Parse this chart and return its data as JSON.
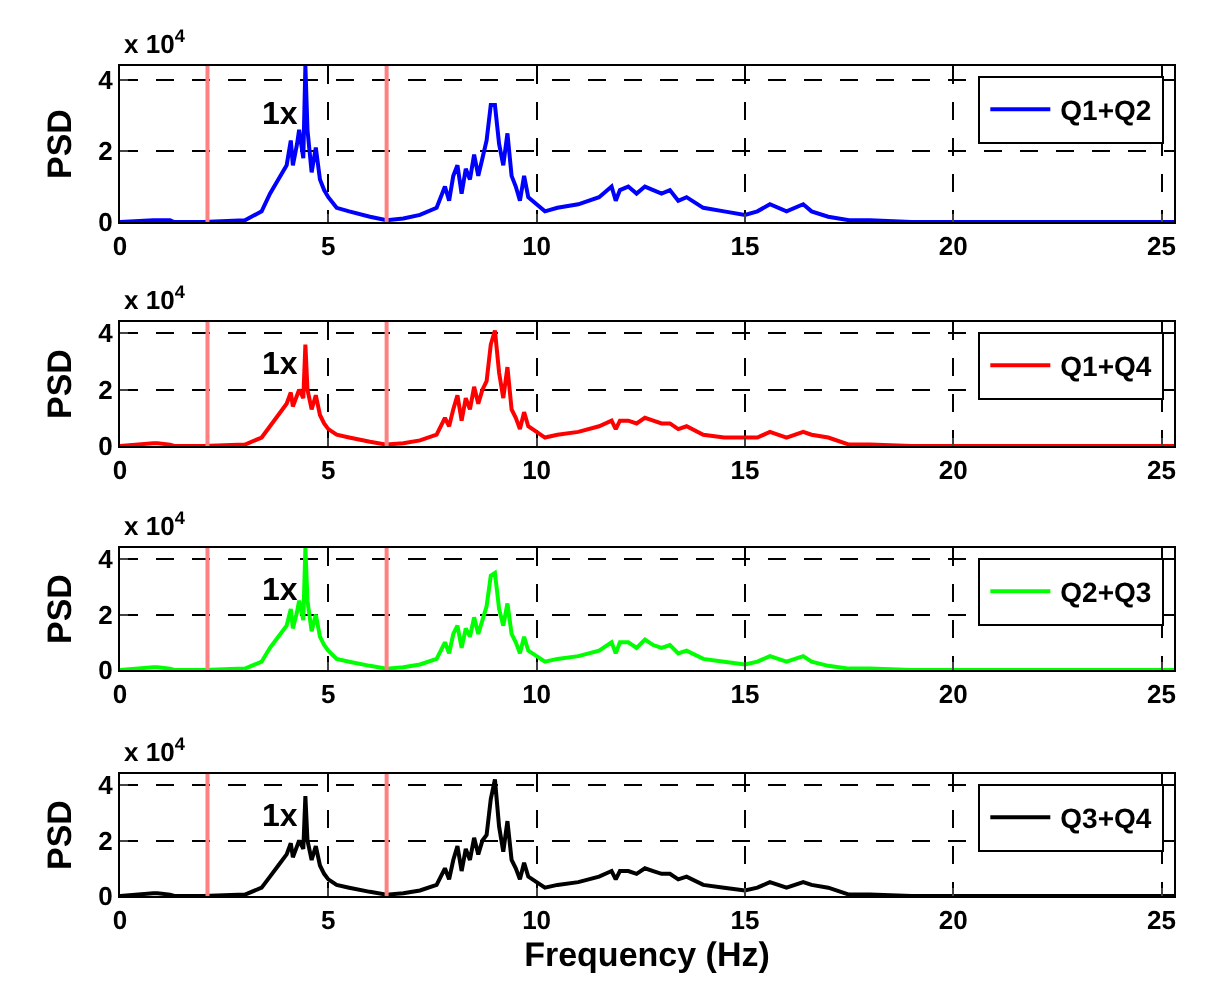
{
  "chart_data": [
    {
      "type": "line",
      "ylabel": "PSD",
      "annotations": [
        "x 10$^{4}$",
        "1x"
      ],
      "xlim": [
        0,
        25.3
      ],
      "ylim": [
        0,
        4.4
      ],
      "xticks": [
        0,
        5,
        10,
        15,
        20,
        25
      ],
      "yticks": [
        0,
        2,
        4
      ],
      "grid": true,
      "legend": "top right",
      "ref_lines": [
        {
          "axis": "x",
          "value": 2.1,
          "color": "#ff8080"
        },
        {
          "axis": "x",
          "value": 6.4,
          "color": "#ff8080"
        }
      ],
      "x": [
        0,
        0.8,
        0.9,
        1.2,
        1.3,
        2,
        3,
        3.4,
        3.6,
        3.8,
        4.0,
        4.1,
        4.15,
        4.25,
        4.3,
        4.4,
        4.45,
        4.5,
        4.6,
        4.7,
        4.8,
        4.9,
        5.0,
        5.2,
        5.5,
        6,
        6.4,
        6.8,
        7.2,
        7.6,
        7.8,
        7.9,
        8.0,
        8.1,
        8.2,
        8.3,
        8.4,
        8.5,
        8.6,
        8.7,
        8.8,
        8.9,
        9.0,
        9.1,
        9.2,
        9.3,
        9.4,
        9.5,
        9.6,
        9.7,
        9.8,
        10.0,
        10.2,
        10.5,
        11,
        11.5,
        11.8,
        11.9,
        12.0,
        12.2,
        12.4,
        12.6,
        12.8,
        13.0,
        13.2,
        13.4,
        13.6,
        14,
        14.5,
        15,
        15.3,
        15.6,
        16,
        16.4,
        16.6,
        17,
        17.5,
        18,
        19,
        20,
        25.3
      ],
      "series": [
        {
          "name": "Q1+Q2",
          "color": "#0000ff",
          "values": [
            0,
            0.05,
            0.05,
            0.05,
            0,
            0,
            0.05,
            0.3,
            0.8,
            1.2,
            1.6,
            2.3,
            1.6,
            2.2,
            2.6,
            1.8,
            4.4,
            2.6,
            1.4,
            2.1,
            1.2,
            0.9,
            0.7,
            0.4,
            0.3,
            0.15,
            0.05,
            0.1,
            0.2,
            0.4,
            1.0,
            0.6,
            1.3,
            1.6,
            0.8,
            1.5,
            1.2,
            1.9,
            1.3,
            1.8,
            2.3,
            3.3,
            3.3,
            2.2,
            1.6,
            2.5,
            1.3,
            1.0,
            0.6,
            1.3,
            0.7,
            0.5,
            0.3,
            0.4,
            0.5,
            0.7,
            1.0,
            0.6,
            0.9,
            1.0,
            0.8,
            1.0,
            0.9,
            0.8,
            0.9,
            0.6,
            0.7,
            0.4,
            0.3,
            0.2,
            0.3,
            0.5,
            0.3,
            0.5,
            0.3,
            0.15,
            0.05,
            0.05,
            0,
            0,
            0
          ]
        }
      ]
    },
    {
      "type": "line",
      "ylabel": "PSD",
      "annotations": [
        "x 10$^{4}$",
        "1x"
      ],
      "xlim": [
        0,
        25.3
      ],
      "ylim": [
        0,
        4.4
      ],
      "xticks": [
        0,
        5,
        10,
        15,
        20,
        25
      ],
      "yticks": [
        0,
        2,
        4
      ],
      "grid": true,
      "legend": "top right",
      "ref_lines": [
        {
          "axis": "x",
          "value": 2.1,
          "color": "#ff8080"
        },
        {
          "axis": "x",
          "value": 6.4,
          "color": "#ff8080"
        }
      ],
      "x": [
        0,
        0.8,
        0.9,
        1.2,
        1.3,
        2,
        3,
        3.4,
        3.6,
        3.8,
        4.0,
        4.1,
        4.15,
        4.25,
        4.3,
        4.4,
        4.45,
        4.5,
        4.6,
        4.7,
        4.8,
        4.9,
        5.0,
        5.2,
        5.5,
        6,
        6.4,
        6.8,
        7.2,
        7.6,
        7.8,
        7.9,
        8.0,
        8.1,
        8.2,
        8.3,
        8.4,
        8.5,
        8.6,
        8.7,
        8.8,
        8.9,
        9.0,
        9.1,
        9.2,
        9.3,
        9.4,
        9.5,
        9.6,
        9.7,
        9.8,
        10.0,
        10.2,
        10.5,
        11,
        11.5,
        11.8,
        11.9,
        12.0,
        12.2,
        12.4,
        12.6,
        12.8,
        13.0,
        13.2,
        13.4,
        13.6,
        14,
        14.5,
        15,
        15.3,
        15.6,
        16,
        16.4,
        16.6,
        17,
        17.5,
        18,
        19,
        20,
        25.3
      ],
      "series": [
        {
          "name": "Q1+Q4",
          "color": "#ff0000",
          "values": [
            0,
            0.1,
            0.1,
            0.05,
            0,
            0,
            0.05,
            0.3,
            0.7,
            1.1,
            1.5,
            1.9,
            1.4,
            1.8,
            2.0,
            1.7,
            3.6,
            2.0,
            1.3,
            1.8,
            1.1,
            0.8,
            0.6,
            0.4,
            0.3,
            0.15,
            0.05,
            0.1,
            0.2,
            0.4,
            1.0,
            0.7,
            1.3,
            1.8,
            0.9,
            1.7,
            1.3,
            2.1,
            1.5,
            2.0,
            2.3,
            3.6,
            4.1,
            2.6,
            1.7,
            2.8,
            1.3,
            1.0,
            0.6,
            1.2,
            0.7,
            0.5,
            0.3,
            0.4,
            0.5,
            0.7,
            0.9,
            0.6,
            0.9,
            0.9,
            0.8,
            1.0,
            0.9,
            0.8,
            0.8,
            0.6,
            0.7,
            0.4,
            0.3,
            0.3,
            0.3,
            0.5,
            0.3,
            0.5,
            0.4,
            0.3,
            0.05,
            0.05,
            0,
            0,
            0
          ]
        }
      ]
    },
    {
      "type": "line",
      "ylabel": "PSD",
      "annotations": [
        "x 10$^{4}$",
        "1x"
      ],
      "xlim": [
        0,
        25.3
      ],
      "ylim": [
        0,
        4.4
      ],
      "xticks": [
        0,
        5,
        10,
        15,
        20,
        25
      ],
      "yticks": [
        0,
        2,
        4
      ],
      "grid": true,
      "legend": "top right",
      "ref_lines": [
        {
          "axis": "x",
          "value": 2.1,
          "color": "#ff8080"
        },
        {
          "axis": "x",
          "value": 6.4,
          "color": "#ff8080"
        }
      ],
      "x": [
        0,
        0.8,
        0.9,
        1.2,
        1.3,
        2,
        3,
        3.4,
        3.6,
        3.8,
        4.0,
        4.1,
        4.15,
        4.25,
        4.3,
        4.4,
        4.45,
        4.5,
        4.6,
        4.7,
        4.8,
        4.9,
        5.0,
        5.2,
        5.5,
        6,
        6.4,
        6.8,
        7.2,
        7.6,
        7.8,
        7.9,
        8.0,
        8.1,
        8.2,
        8.3,
        8.4,
        8.5,
        8.6,
        8.7,
        8.8,
        8.9,
        9.0,
        9.1,
        9.2,
        9.3,
        9.4,
        9.5,
        9.6,
        9.7,
        9.8,
        10.0,
        10.2,
        10.5,
        11,
        11.5,
        11.8,
        11.9,
        12.0,
        12.2,
        12.4,
        12.6,
        12.8,
        13.0,
        13.2,
        13.4,
        13.6,
        14,
        14.5,
        15,
        15.3,
        15.6,
        16,
        16.4,
        16.6,
        17,
        17.5,
        18,
        19,
        20,
        25.3
      ],
      "series": [
        {
          "name": "Q2+Q3",
          "color": "#00ff00",
          "values": [
            0,
            0.1,
            0.1,
            0.05,
            0,
            0,
            0.05,
            0.3,
            0.8,
            1.2,
            1.6,
            2.2,
            1.5,
            2.1,
            2.5,
            1.8,
            4.4,
            2.5,
            1.4,
            2.0,
            1.2,
            0.9,
            0.7,
            0.4,
            0.3,
            0.15,
            0.05,
            0.1,
            0.2,
            0.4,
            1.0,
            0.6,
            1.3,
            1.6,
            0.8,
            1.5,
            1.2,
            1.9,
            1.3,
            1.8,
            2.3,
            3.4,
            3.5,
            2.2,
            1.6,
            2.4,
            1.3,
            1.0,
            0.6,
            1.2,
            0.7,
            0.5,
            0.3,
            0.4,
            0.5,
            0.7,
            1.0,
            0.6,
            1.0,
            1.0,
            0.8,
            1.1,
            0.9,
            0.8,
            0.9,
            0.6,
            0.7,
            0.4,
            0.3,
            0.2,
            0.3,
            0.5,
            0.3,
            0.5,
            0.3,
            0.15,
            0.05,
            0.05,
            0,
            0,
            0
          ]
        }
      ]
    },
    {
      "type": "line",
      "ylabel": "PSD",
      "xlabel": "Frequency (Hz)",
      "annotations": [
        "x 10$^{4}$",
        "1x"
      ],
      "xlim": [
        0,
        25.3
      ],
      "ylim": [
        0,
        4.4
      ],
      "xticks": [
        0,
        5,
        10,
        15,
        20,
        25
      ],
      "yticks": [
        0,
        2,
        4
      ],
      "grid": true,
      "legend": "top right",
      "ref_lines": [
        {
          "axis": "x",
          "value": 2.1,
          "color": "#ff8080"
        },
        {
          "axis": "x",
          "value": 6.4,
          "color": "#ff8080"
        }
      ],
      "x": [
        0,
        0.8,
        0.9,
        1.2,
        1.3,
        2,
        3,
        3.4,
        3.6,
        3.8,
        4.0,
        4.1,
        4.15,
        4.25,
        4.3,
        4.4,
        4.45,
        4.5,
        4.6,
        4.7,
        4.8,
        4.9,
        5.0,
        5.2,
        5.5,
        6,
        6.4,
        6.8,
        7.2,
        7.6,
        7.8,
        7.9,
        8.0,
        8.1,
        8.2,
        8.3,
        8.4,
        8.5,
        8.6,
        8.7,
        8.8,
        8.9,
        9.0,
        9.1,
        9.2,
        9.3,
        9.4,
        9.5,
        9.6,
        9.7,
        9.8,
        10.0,
        10.2,
        10.5,
        11,
        11.5,
        11.8,
        11.9,
        12.0,
        12.2,
        12.4,
        12.6,
        12.8,
        13.0,
        13.2,
        13.4,
        13.6,
        14,
        14.5,
        15,
        15.3,
        15.6,
        16,
        16.4,
        16.6,
        17,
        17.5,
        18,
        19,
        20,
        25.3
      ],
      "series": [
        {
          "name": "Q3+Q4",
          "color": "#000000",
          "values": [
            0,
            0.1,
            0.1,
            0.05,
            0,
            0,
            0.05,
            0.3,
            0.7,
            1.1,
            1.5,
            1.9,
            1.4,
            1.8,
            2.0,
            1.7,
            3.6,
            2.0,
            1.3,
            1.8,
            1.1,
            0.8,
            0.6,
            0.4,
            0.3,
            0.15,
            0.05,
            0.1,
            0.2,
            0.4,
            1.0,
            0.6,
            1.3,
            1.8,
            0.9,
            1.7,
            1.3,
            2.1,
            1.5,
            2.0,
            2.2,
            3.5,
            4.2,
            2.5,
            1.6,
            2.7,
            1.3,
            1.0,
            0.6,
            1.2,
            0.7,
            0.5,
            0.3,
            0.4,
            0.5,
            0.7,
            0.9,
            0.6,
            0.9,
            0.9,
            0.8,
            1.0,
            0.9,
            0.8,
            0.8,
            0.6,
            0.7,
            0.4,
            0.3,
            0.2,
            0.3,
            0.5,
            0.3,
            0.5,
            0.4,
            0.3,
            0.05,
            0.05,
            0,
            0,
            0
          ]
        }
      ]
    }
  ]
}
